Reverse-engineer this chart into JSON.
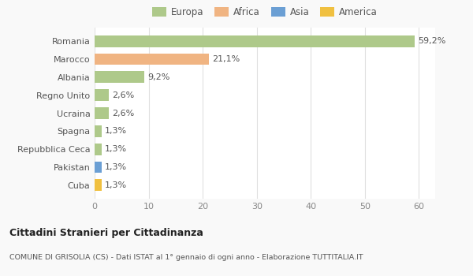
{
  "countries": [
    "Romania",
    "Marocco",
    "Albania",
    "Regno Unito",
    "Ucraina",
    "Spagna",
    "Repubblica Ceca",
    "Pakistan",
    "Cuba"
  ],
  "values": [
    59.2,
    21.1,
    9.2,
    2.6,
    2.6,
    1.3,
    1.3,
    1.3,
    1.3
  ],
  "labels": [
    "59,2%",
    "21,1%",
    "9,2%",
    "2,6%",
    "2,6%",
    "1,3%",
    "1,3%",
    "1,3%",
    "1,3%"
  ],
  "colors": [
    "#aec98a",
    "#f0b482",
    "#aec98a",
    "#aec98a",
    "#aec98a",
    "#aec98a",
    "#aec98a",
    "#6b9fd4",
    "#f0c040"
  ],
  "legend_labels": [
    "Europa",
    "Africa",
    "Asia",
    "America"
  ],
  "legend_colors": [
    "#aec98a",
    "#f0b482",
    "#6b9fd4",
    "#f0c040"
  ],
  "title": "Cittadini Stranieri per Cittadinanza",
  "subtitle": "COMUNE DI GRISOLIA (CS) - Dati ISTAT al 1° gennaio di ogni anno - Elaborazione TUTTITALIA.IT",
  "xlim": [
    0,
    63
  ],
  "xticks": [
    0,
    10,
    20,
    30,
    40,
    50,
    60
  ],
  "bg_color": "#f9f9f9",
  "plot_bg_color": "#ffffff",
  "grid_color": "#e0e0e0",
  "label_fontsize": 8,
  "tick_fontsize": 8,
  "bar_height": 0.65
}
